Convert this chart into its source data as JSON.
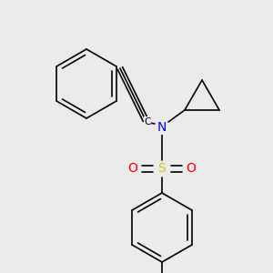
{
  "bg_color": "#ebebeb",
  "atom_colors": {
    "C": "#000000",
    "N": "#0000ee",
    "S": "#cccc00",
    "O": "#ff0000"
  },
  "bond_color": "#000000",
  "lw": 1.2
}
